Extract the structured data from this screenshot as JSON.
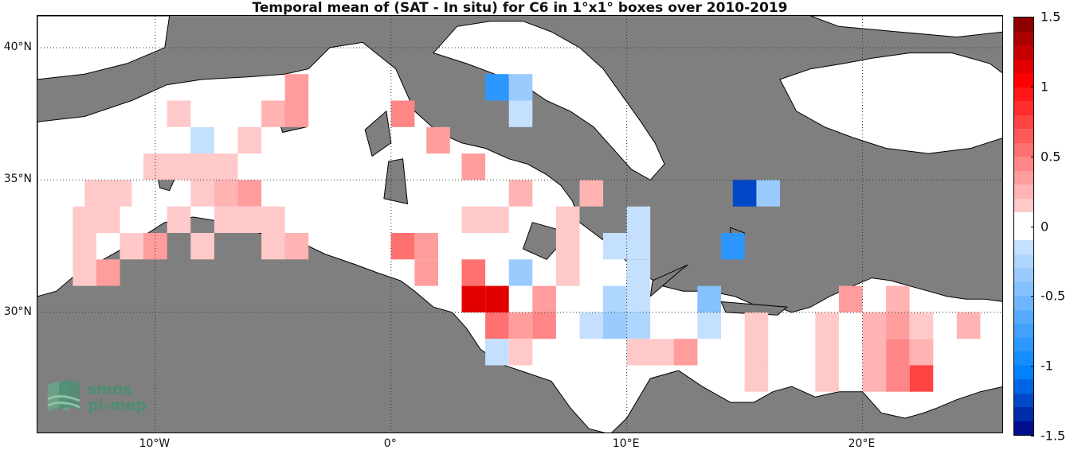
{
  "title": "Temporal mean of (SAT - In situ) for C6 in 1°x1° boxes over 2010-2019",
  "map": {
    "lon_range": [
      -15,
      26
    ],
    "lat_range": [
      25.4,
      41.2
    ],
    "latitude_labels": [
      {
        "lat": 40,
        "text": "40°N"
      },
      {
        "lat": 35,
        "text": "35°N"
      },
      {
        "lat": 30,
        "text": "30°N"
      }
    ],
    "longitude_labels": [
      {
        "lon": -10,
        "text": "10°W"
      },
      {
        "lon": 0,
        "text": "0°"
      },
      {
        "lon": 10,
        "text": "10°E"
      },
      {
        "lon": 20,
        "text": "20°E"
      }
    ],
    "land_color": "#7f7f7f",
    "sea_color": "#ffffff",
    "grid": "dotted"
  },
  "colorbar": {
    "min": -1.5,
    "max": 1.5,
    "levels": 30,
    "tick_labels": [
      "1.5",
      "1",
      "0.5",
      "0",
      "-0.5",
      "-1",
      "-1.5"
    ],
    "tick_values": [
      1.5,
      1,
      0.5,
      0,
      -0.5,
      -1,
      -1.5
    ]
  },
  "boxes": [
    {
      "lon": -4,
      "lat": 38.5,
      "value": 0.3
    },
    {
      "lon": -9,
      "lat": 37.5,
      "value": 0.15
    },
    {
      "lon": -5,
      "lat": 37.5,
      "value": 0.2
    },
    {
      "lon": -4,
      "lat": 37.5,
      "value": 0.3
    },
    {
      "lon": 0.5,
      "lat": 37.5,
      "value": 0.45
    },
    {
      "lon": -8,
      "lat": 36.5,
      "value": -0.15
    },
    {
      "lon": -6,
      "lat": 36.5,
      "value": 0.15
    },
    {
      "lon": 2,
      "lat": 36.5,
      "value": 0.3
    },
    {
      "lon": -10,
      "lat": 35.5,
      "value": 0.15
    },
    {
      "lon": -9,
      "lat": 35.5,
      "value": 0.15
    },
    {
      "lon": -8,
      "lat": 35.5,
      "value": 0.15
    },
    {
      "lon": -7,
      "lat": 35.5,
      "value": 0.15
    },
    {
      "lon": 3.5,
      "lat": 35.5,
      "value": 0.35
    },
    {
      "lon": -12.5,
      "lat": 34.5,
      "value": 0.15
    },
    {
      "lon": -11.5,
      "lat": 34.5,
      "value": 0.15
    },
    {
      "lon": -8,
      "lat": 34.5,
      "value": 0.15
    },
    {
      "lon": -7,
      "lat": 34.5,
      "value": 0.2
    },
    {
      "lon": -6,
      "lat": 34.5,
      "value": 0.3
    },
    {
      "lon": 5.5,
      "lat": 34.5,
      "value": 0.2
    },
    {
      "lon": 8.5,
      "lat": 34.5,
      "value": 0.25
    },
    {
      "lon": -13,
      "lat": 33.5,
      "value": 0.15
    },
    {
      "lon": -12,
      "lat": 33.5,
      "value": 0.15
    },
    {
      "lon": -9,
      "lat": 33.5,
      "value": 0.15
    },
    {
      "lon": -7,
      "lat": 33.5,
      "value": 0.15
    },
    {
      "lon": -6,
      "lat": 33.5,
      "value": 0.15
    },
    {
      "lon": -5,
      "lat": 33.5,
      "value": 0.15
    },
    {
      "lon": 3.5,
      "lat": 33.5,
      "value": 0.15
    },
    {
      "lon": 4.5,
      "lat": 33.5,
      "value": 0.15
    },
    {
      "lon": 7.5,
      "lat": 33.5,
      "value": 0.15
    },
    {
      "lon": 10.5,
      "lat": 33.5,
      "value": -0.1
    },
    {
      "lon": -13,
      "lat": 32.5,
      "value": 0.15
    },
    {
      "lon": -11,
      "lat": 32.5,
      "value": 0.15
    },
    {
      "lon": -10,
      "lat": 32.5,
      "value": 0.4
    },
    {
      "lon": -8,
      "lat": 32.5,
      "value": 0.15
    },
    {
      "lon": -5,
      "lat": 32.5,
      "value": 0.15
    },
    {
      "lon": -4,
      "lat": 32.5,
      "value": 0.25
    },
    {
      "lon": 0.5,
      "lat": 32.5,
      "value": 0.5
    },
    {
      "lon": 1.5,
      "lat": 32.5,
      "value": 0.35
    },
    {
      "lon": 7.5,
      "lat": 32.5,
      "value": 0.15
    },
    {
      "lon": 9.5,
      "lat": 32.5,
      "value": -0.2
    },
    {
      "lon": 10.5,
      "lat": 32.5,
      "value": -0.1
    },
    {
      "lon": 14.5,
      "lat": 32.5,
      "value": -0.85
    },
    {
      "lon": -13,
      "lat": 31.5,
      "value": 0.15
    },
    {
      "lon": -12,
      "lat": 31.5,
      "value": 0.35
    },
    {
      "lon": 1.5,
      "lat": 31.5,
      "value": 0.35
    },
    {
      "lon": 3.5,
      "lat": 31.5,
      "value": 0.55
    },
    {
      "lon": 5.5,
      "lat": 31.5,
      "value": -0.35
    },
    {
      "lon": 7.5,
      "lat": 31.5,
      "value": 0.15
    },
    {
      "lon": 10.5,
      "lat": 31.5,
      "value": -0.1
    },
    {
      "lon": 3.5,
      "lat": 30.5,
      "value": 1.1
    },
    {
      "lon": 4.5,
      "lat": 30.5,
      "value": 1.1
    },
    {
      "lon": 6.5,
      "lat": 30.5,
      "value": 0.3
    },
    {
      "lon": 9.5,
      "lat": 30.5,
      "value": -0.25
    },
    {
      "lon": 10.5,
      "lat": 30.5,
      "value": -0.1
    },
    {
      "lon": 13.5,
      "lat": 30.5,
      "value": -0.45
    },
    {
      "lon": 19.5,
      "lat": 30.5,
      "value": 0.35
    },
    {
      "lon": 21.5,
      "lat": 30.5,
      "value": 0.2
    },
    {
      "lon": 4.5,
      "lat": 29.5,
      "value": 0.55
    },
    {
      "lon": 5.5,
      "lat": 29.5,
      "value": 0.3
    },
    {
      "lon": 6.5,
      "lat": 29.5,
      "value": 0.45
    },
    {
      "lon": 8.5,
      "lat": 29.5,
      "value": -0.1
    },
    {
      "lon": 9.5,
      "lat": 29.5,
      "value": -0.4
    },
    {
      "lon": 10.5,
      "lat": 29.5,
      "value": -0.25
    },
    {
      "lon": 13.5,
      "lat": 29.5,
      "value": -0.1
    },
    {
      "lon": 15.5,
      "lat": 29.5,
      "value": 0.15
    },
    {
      "lon": 18.5,
      "lat": 29.5,
      "value": 0.15
    },
    {
      "lon": 20.5,
      "lat": 29.5,
      "value": 0.25
    },
    {
      "lon": 21.5,
      "lat": 29.5,
      "value": 0.3
    },
    {
      "lon": 22.5,
      "lat": 29.5,
      "value": 0.15
    },
    {
      "lon": 24.5,
      "lat": 29.5,
      "value": 0.2
    },
    {
      "lon": 4.5,
      "lat": 28.5,
      "value": -0.15
    },
    {
      "lon": 5.5,
      "lat": 28.5,
      "value": 0.15
    },
    {
      "lon": 10.5,
      "lat": 28.5,
      "value": 0.15
    },
    {
      "lon": 11.5,
      "lat": 28.5,
      "value": 0.15
    },
    {
      "lon": 12.5,
      "lat": 28.5,
      "value": 0.4
    },
    {
      "lon": 15.5,
      "lat": 28.5,
      "value": 0.15
    },
    {
      "lon": 18.5,
      "lat": 28.5,
      "value": 0.15
    },
    {
      "lon": 20.5,
      "lat": 28.5,
      "value": 0.25
    },
    {
      "lon": 21.5,
      "lat": 28.5,
      "value": 0.45
    },
    {
      "lon": 22.5,
      "lat": 28.5,
      "value": 0.2
    },
    {
      "lon": 15.5,
      "lat": 27.5,
      "value": 0.15
    },
    {
      "lon": 18.5,
      "lat": 27.5,
      "value": 0.15
    },
    {
      "lon": 20.5,
      "lat": 27.5,
      "value": 0.25
    },
    {
      "lon": 21.5,
      "lat": 27.5,
      "value": 0.45
    },
    {
      "lon": 22.5,
      "lat": 27.5,
      "value": 0.75
    },
    {
      "lon": 15,
      "lat": 34.5,
      "value": -1.25
    },
    {
      "lon": 16,
      "lat": 34.5,
      "value": -0.35
    },
    {
      "lon": 4.5,
      "lat": 38.5,
      "value": -0.8
    },
    {
      "lon": 5.5,
      "lat": 38.5,
      "value": -0.35
    },
    {
      "lon": 5.5,
      "lat": 37.5,
      "value": -0.2
    }
  ],
  "logo": {
    "line1": "smos",
    "line2": "pi-mep",
    "color": "#4a8f70"
  }
}
